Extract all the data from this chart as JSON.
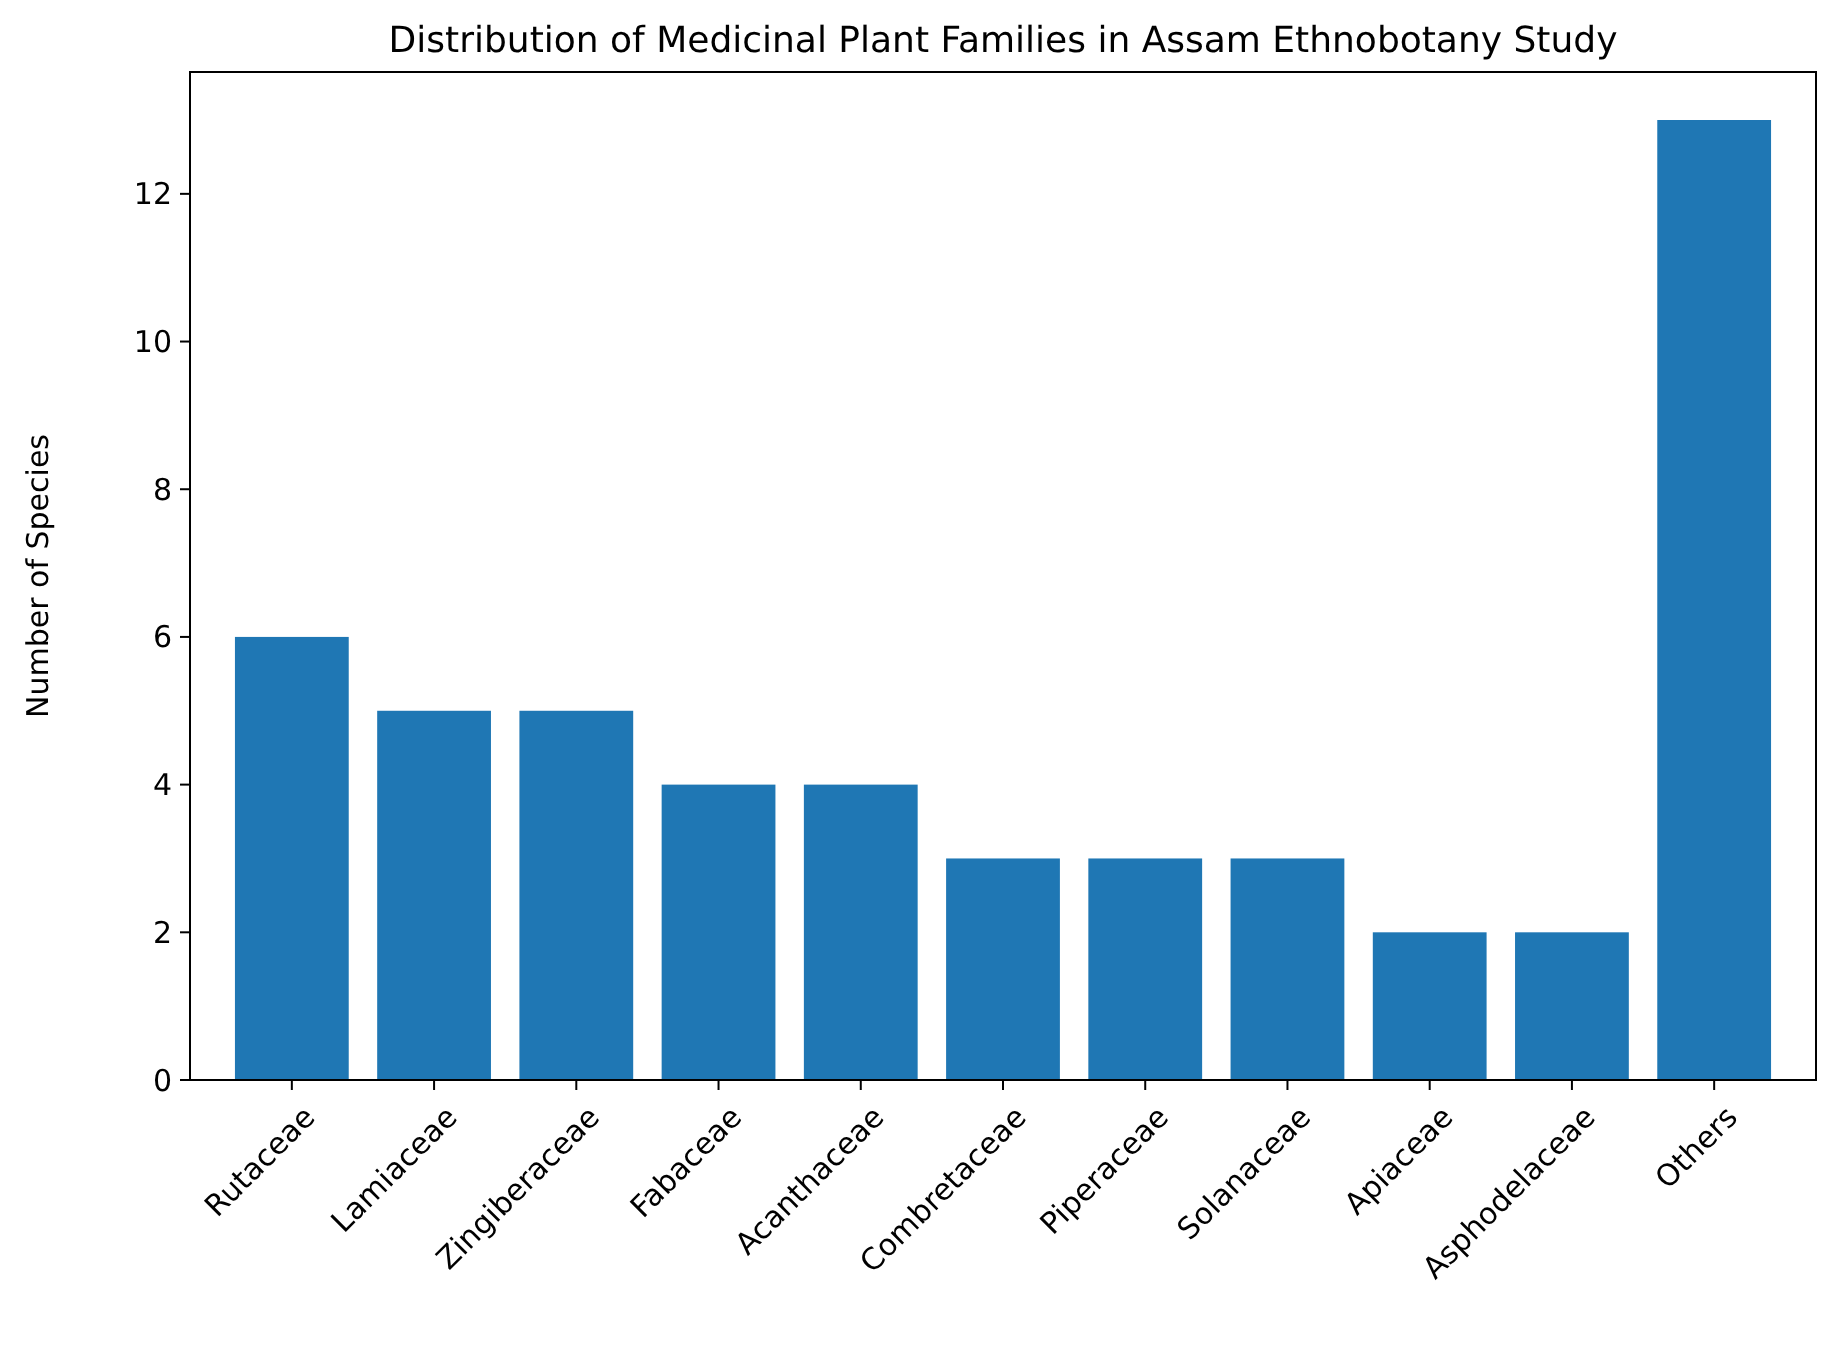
{
  "chart_data": {
    "type": "bar",
    "title": "Distribution of Medicinal Plant Families in Assam Ethnobotany Study",
    "ylabel": "Number of Species",
    "categories": [
      "Rutaceae",
      "Lamiaceae",
      "Zingiberaceae",
      "Fabaceae",
      "Acanthaceae",
      "Combretaceae",
      "Piperaceae",
      "Solanaceae",
      "Apiaceae",
      "Asphodelaceae",
      "Others"
    ],
    "values": [
      6,
      5,
      5,
      4,
      4,
      3,
      3,
      3,
      2,
      2,
      13
    ],
    "color": "#1f77b4",
    "ylim": [
      0,
      13.65
    ],
    "yticks": [
      0,
      2,
      4,
      6,
      8,
      10,
      12
    ],
    "grid": false
  }
}
